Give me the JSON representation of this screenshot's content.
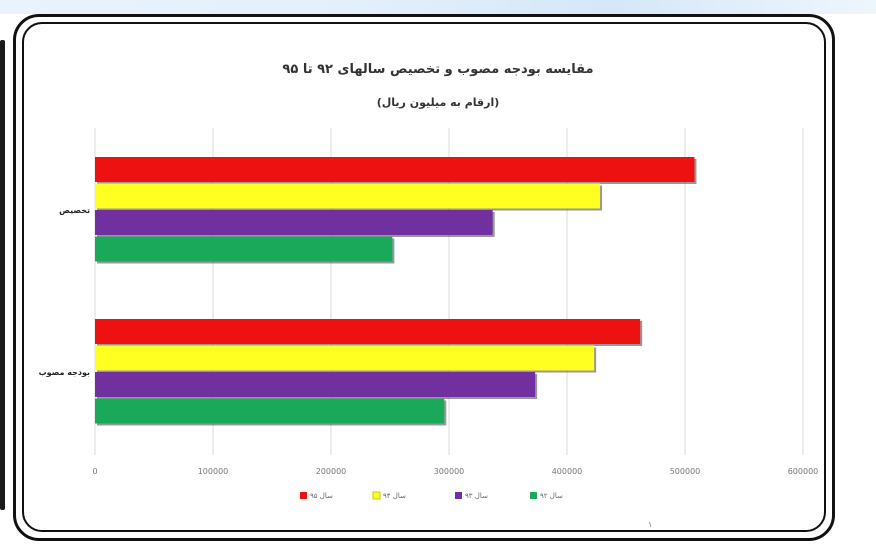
{
  "chart_data": {
    "type": "bar",
    "orientation": "horizontal",
    "title": "مقایسه بودجه مصوب و تخصیص سالهای ۹۲ تا ۹۵",
    "subtitle": "(ارقام به میلیون ریال)",
    "categories": [
      "تخصیص",
      "بودجه مصوب"
    ],
    "series": [
      {
        "name": "سال ۹۵",
        "color": "#ee1111",
        "values": [
          508000,
          462000
        ]
      },
      {
        "name": "سال ۹۴",
        "color": "#ffff22",
        "values": [
          428000,
          423000
        ]
      },
      {
        "name": "سال ۹۳",
        "color": "#7030a0",
        "values": [
          337000,
          373000
        ]
      },
      {
        "name": "سال ۹۲",
        "color": "#1aa85a",
        "values": [
          252000,
          296000
        ]
      }
    ],
    "xlim": [
      0,
      600000
    ],
    "x_ticks": [
      "0",
      "100000",
      "200000",
      "300000",
      "400000",
      "500000",
      "600000"
    ],
    "grid": true,
    "legend_position": "bottom"
  },
  "footer_mark": "۱"
}
